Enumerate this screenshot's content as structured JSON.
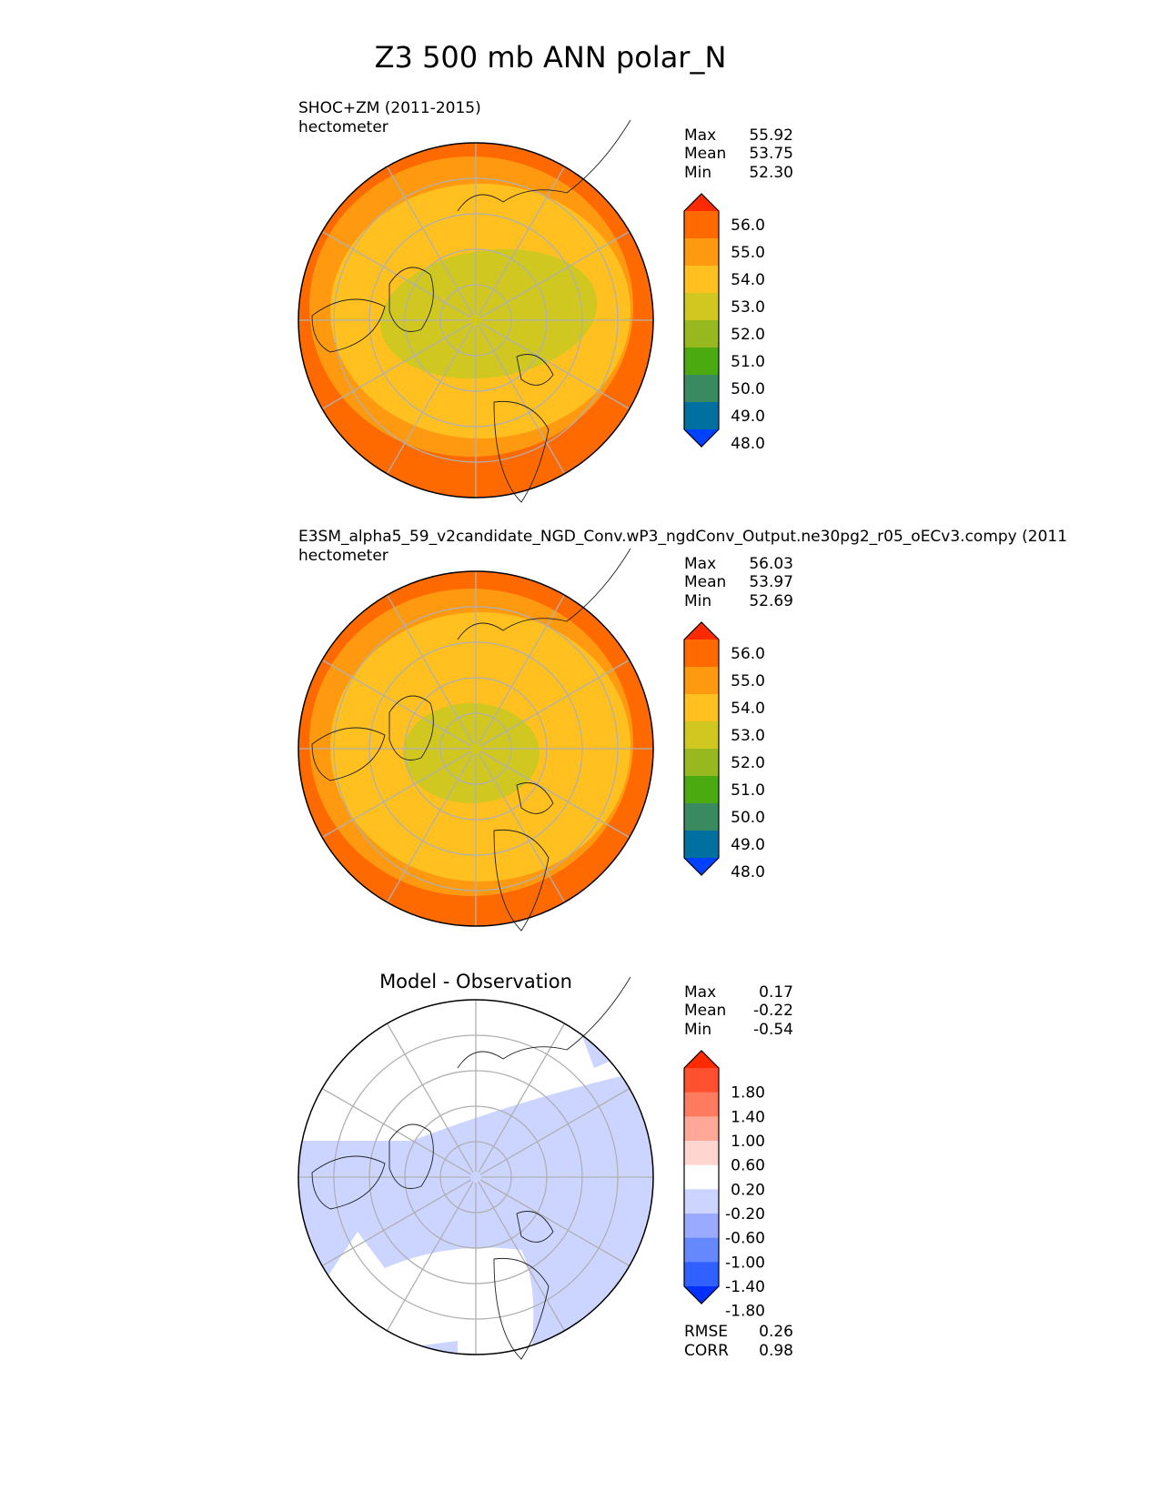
{
  "chart_data": {
    "type": "heatmap",
    "title": "Z3 500 mb ANN polar_N",
    "panels": [
      {
        "title": "SHOC+ZM (2011-2015)",
        "units": "hectometer",
        "stats": [
          {
            "label": "Max",
            "value": "55.92"
          },
          {
            "label": "Mean",
            "value": "53.75"
          },
          {
            "label": "Min",
            "value": "52.30"
          }
        ],
        "colorbar": {
          "ticks": [
            "56.0",
            "55.0",
            "54.0",
            "53.0",
            "52.0",
            "51.0",
            "50.0",
            "49.0",
            "48.0"
          ],
          "colors": [
            "#ff2a00",
            "#ff6a00",
            "#ff9a10",
            "#ffc020",
            "#d0c820",
            "#98b820",
            "#4aaa10",
            "#3a8a60",
            "#0070a0",
            "#0040ff"
          ]
        },
        "fields": {
          "outer": "#ff6a00",
          "band1": "#ff9a10",
          "band2": "#ffc020",
          "core": "#d0c820"
        }
      },
      {
        "title": "E3SM_alpha5_59_v2candidate_NGD_Conv.wP3_ngdConv_Output.ne30pg2_r05_oECv3.compy (2011",
        "units": "hectometer",
        "stats": [
          {
            "label": "Max",
            "value": "56.03"
          },
          {
            "label": "Mean",
            "value": "53.97"
          },
          {
            "label": "Min",
            "value": "52.69"
          }
        ],
        "colorbar": {
          "ticks": [
            "56.0",
            "55.0",
            "54.0",
            "53.0",
            "52.0",
            "51.0",
            "50.0",
            "49.0",
            "48.0"
          ],
          "colors": [
            "#ff2a00",
            "#ff6a00",
            "#ff9a10",
            "#ffc020",
            "#d0c820",
            "#98b820",
            "#4aaa10",
            "#3a8a60",
            "#0070a0",
            "#0040ff"
          ]
        },
        "fields": {
          "outer": "#ff6a00",
          "band1": "#ff9a10",
          "band2": "#ffc020",
          "core": "#d0c820"
        }
      },
      {
        "title": "Model - Observation",
        "units": "",
        "stats": [
          {
            "label": "Max",
            "value": "0.17"
          },
          {
            "label": "Mean",
            "value": "-0.22"
          },
          {
            "label": "Min",
            "value": "-0.54"
          }
        ],
        "colorbar": {
          "ticks": [
            "1.80",
            "1.40",
            "1.00",
            "0.60",
            "0.20",
            "-0.20",
            "-0.60",
            "-1.00",
            "-1.40",
            "-1.80"
          ],
          "colors": [
            "#ff2a00",
            "#ff5030",
            "#ff7b60",
            "#ffa898",
            "#ffd5d0",
            "#ffffff",
            "#ccd5ff",
            "#99aaff",
            "#6688ff",
            "#3060ff",
            "#0030ff"
          ]
        },
        "metrics": [
          {
            "label": "RMSE",
            "value": "0.26"
          },
          {
            "label": "CORR",
            "value": "0.98"
          }
        ],
        "fields": {
          "outer": "#ccd5ff",
          "white": "#ffffff"
        }
      }
    ]
  }
}
